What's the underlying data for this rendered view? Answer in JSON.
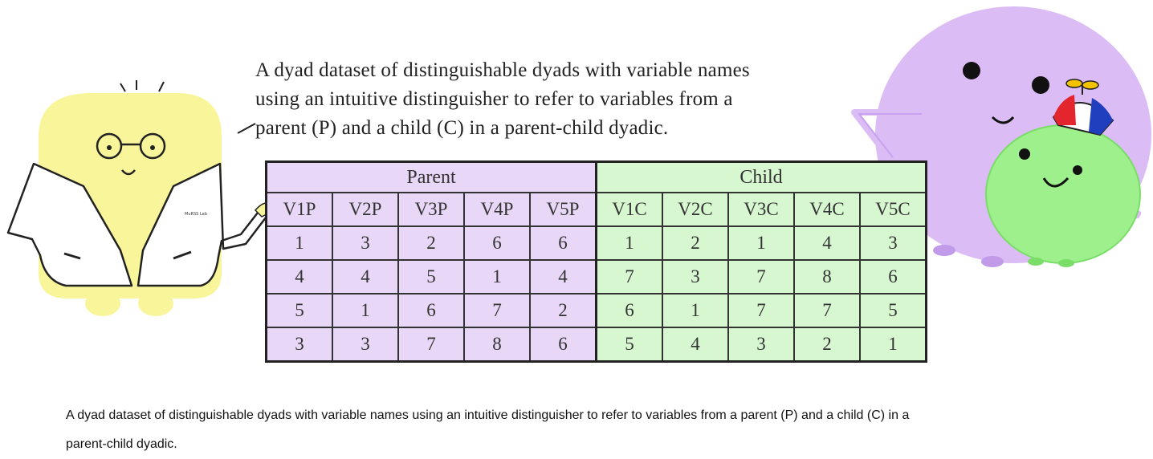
{
  "headline_lines": [
    "A dyad dataset of distinguishable dyads with variable names",
    "using an intuitive distinguisher to refer to variables from a",
    "parent (P) and a child (C) in a parent-child dyadic."
  ],
  "table": {
    "groups": [
      {
        "label": "Parent",
        "colspan": 5
      },
      {
        "label": "Child",
        "colspan": 5
      }
    ],
    "columns": [
      "V1P",
      "V2P",
      "V3P",
      "V4P",
      "V5P",
      "V1C",
      "V2C",
      "V3C",
      "V4C",
      "V5C"
    ],
    "rows": [
      [
        "1",
        "3",
        "2",
        "6",
        "6",
        "1",
        "2",
        "1",
        "4",
        "3"
      ],
      [
        "4",
        "4",
        "5",
        "1",
        "4",
        "7",
        "3",
        "7",
        "8",
        "6"
      ],
      [
        "5",
        "1",
        "6",
        "7",
        "2",
        "6",
        "1",
        "7",
        "7",
        "5"
      ],
      [
        "3",
        "3",
        "7",
        "8",
        "6",
        "5",
        "4",
        "3",
        "2",
        "1"
      ]
    ]
  },
  "labcoat_text": "MuRSS Lab",
  "caption_lines": [
    "A dyad dataset of distinguishable dyads with variable names using an intuitive distinguisher to refer to variables from a parent (P) and a child (C) in a",
    "parent-child dyadic."
  ],
  "colors": {
    "parent_fill": "#e8d7f7",
    "child_fill": "#d6f7d0",
    "yellow_character": "#f8f59a",
    "purple_character": "#dcbcf5",
    "green_character": "#9ef08c"
  }
}
